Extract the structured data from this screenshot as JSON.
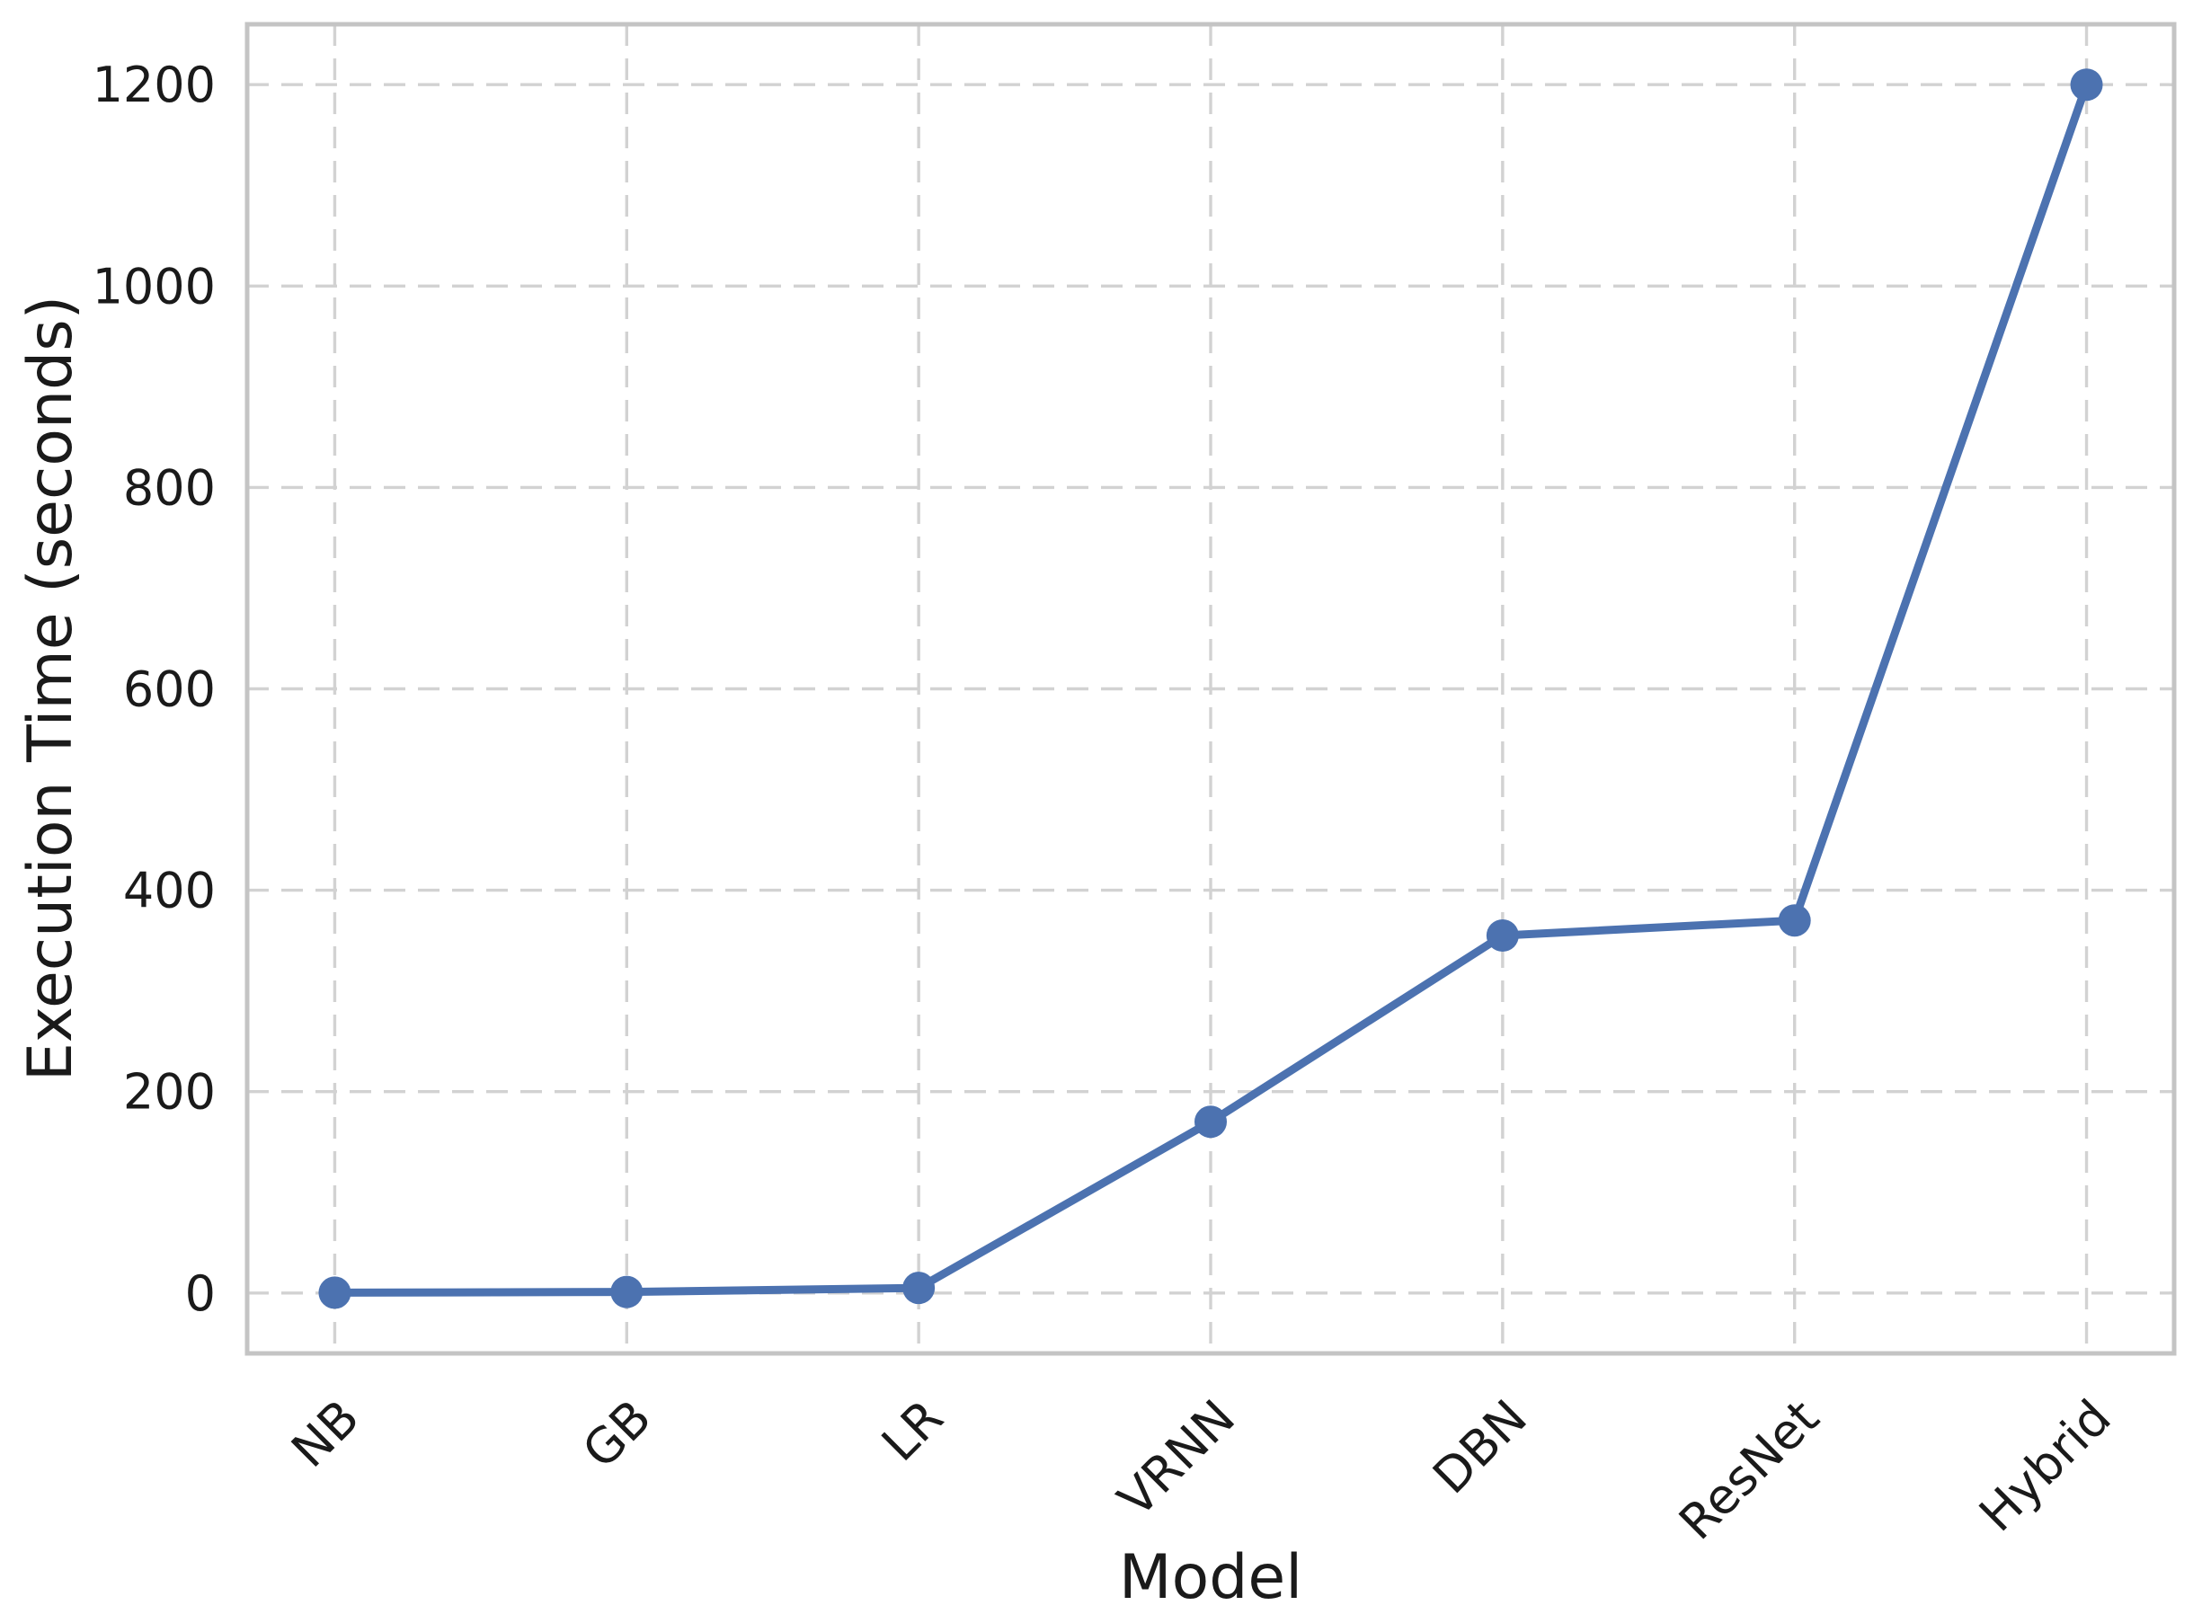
{
  "chart_data": {
    "type": "line",
    "categories": [
      "NB",
      "GB",
      "LR",
      "VRNN",
      "DBN",
      "ResNet",
      "Hybrid"
    ],
    "values": [
      0.3,
      1,
      5,
      170,
      355,
      370,
      1200
    ],
    "series": [
      {
        "name": "Execution Time",
        "values": [
          0.3,
          1,
          5,
          170,
          355,
          370,
          1200
        ]
      }
    ],
    "title": "",
    "xlabel": "Model",
    "ylabel": "Execution Time (seconds)",
    "yticks": [
      0,
      200,
      400,
      600,
      800,
      1000,
      1200
    ],
    "ylim": [
      -60,
      1260
    ],
    "xlim": [
      -0.3,
      6.3
    ],
    "x_tick_rotation_deg": 45,
    "grid": "on",
    "grid_linestyle": "dashed",
    "legend": "none",
    "marker": "circle"
  },
  "colors": {
    "line": "#4C72B0",
    "marker": "#4C72B0",
    "grid": "#d2d2d2",
    "spine": "#c4c4c4",
    "text": "#1a1a1a",
    "background": "#ffffff"
  }
}
